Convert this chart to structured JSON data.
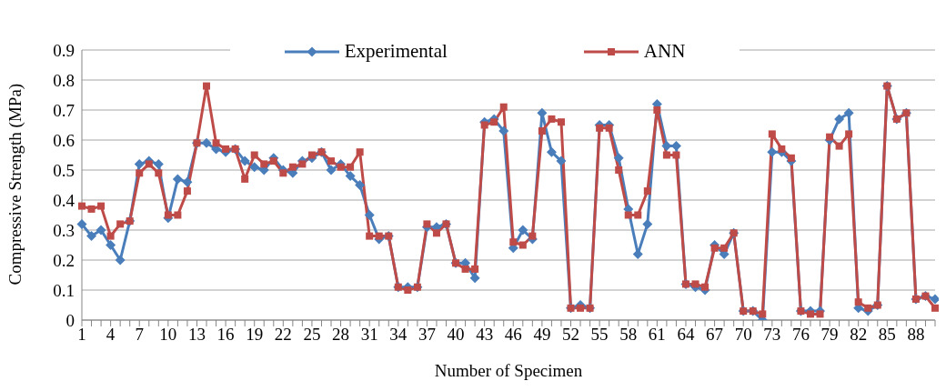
{
  "chart_data": {
    "type": "line",
    "xlabel": "Number of Specimen",
    "ylabel": "Compressive Strength (MPa)",
    "categories": [
      "1",
      null,
      null,
      "4",
      null,
      null,
      "7",
      null,
      null,
      "10",
      null,
      null,
      "13",
      null,
      null,
      "16",
      null,
      null,
      "19",
      null,
      null,
      "22",
      null,
      null,
      "25",
      null,
      null,
      "28",
      null,
      null,
      "31",
      null,
      null,
      "34",
      null,
      null,
      "37",
      null,
      null,
      "40",
      null,
      null,
      "43",
      null,
      null,
      "46",
      null,
      null,
      "49",
      null,
      null,
      "52",
      null,
      null,
      "55",
      null,
      null,
      "58",
      null,
      null,
      "61",
      null,
      null,
      "64",
      null,
      null,
      "67",
      null,
      null,
      "70",
      null,
      null,
      "73",
      null,
      null,
      "76",
      null,
      null,
      "79",
      null,
      null,
      "82",
      null,
      null,
      "85",
      null,
      null,
      "88",
      null,
      null
    ],
    "series": [
      {
        "name": "Experimental",
        "color": "#4a7ebb",
        "marker": "diamond",
        "values": [
          0.32,
          0.28,
          0.3,
          0.25,
          0.2,
          0.33,
          0.52,
          0.53,
          0.52,
          0.34,
          0.47,
          0.46,
          0.59,
          0.59,
          0.57,
          0.56,
          0.57,
          0.53,
          0.51,
          0.5,
          0.54,
          0.5,
          0.49,
          0.53,
          0.54,
          0.56,
          0.5,
          0.52,
          0.48,
          0.45,
          0.35,
          0.27,
          0.28,
          0.11,
          0.11,
          0.11,
          0.31,
          0.31,
          0.32,
          0.19,
          0.19,
          0.14,
          0.66,
          0.67,
          0.63,
          0.24,
          0.3,
          0.27,
          0.69,
          0.56,
          0.53,
          0.04,
          0.05,
          0.04,
          0.65,
          0.65,
          0.54,
          0.37,
          0.22,
          0.32,
          0.72,
          0.58,
          0.58,
          0.12,
          0.11,
          0.1,
          0.25,
          0.22,
          0.29,
          0.03,
          0.03,
          0.0,
          0.56,
          0.56,
          0.53,
          0.03,
          0.03,
          0.03,
          0.6,
          0.67,
          0.69,
          0.04,
          0.03,
          0.05,
          0.78,
          0.67,
          0.69,
          0.07,
          0.08,
          0.07
        ]
      },
      {
        "name": "ANN",
        "color": "#be4b48",
        "marker": "square",
        "values": [
          0.38,
          0.37,
          0.38,
          0.28,
          0.32,
          0.33,
          0.49,
          0.52,
          0.49,
          0.35,
          0.35,
          0.43,
          0.59,
          0.78,
          0.59,
          0.57,
          0.57,
          0.47,
          0.55,
          0.52,
          0.53,
          0.49,
          0.51,
          0.52,
          0.55,
          0.56,
          0.53,
          0.51,
          0.51,
          0.56,
          0.28,
          0.28,
          0.28,
          0.11,
          0.1,
          0.11,
          0.32,
          0.29,
          0.32,
          0.19,
          0.17,
          0.17,
          0.65,
          0.66,
          0.71,
          0.26,
          0.25,
          0.28,
          0.63,
          0.67,
          0.66,
          0.04,
          0.04,
          0.04,
          0.64,
          0.64,
          0.5,
          0.35,
          0.35,
          0.43,
          0.7,
          0.55,
          0.55,
          0.12,
          0.12,
          0.11,
          0.24,
          0.24,
          0.29,
          0.03,
          0.03,
          0.02,
          0.62,
          0.57,
          0.54,
          0.03,
          0.02,
          0.02,
          0.61,
          0.58,
          0.62,
          0.06,
          0.04,
          0.05,
          0.78,
          0.67,
          0.69,
          0.07,
          0.08,
          0.04
        ]
      }
    ],
    "ylim": [
      0,
      0.9
    ],
    "yticks": [
      0,
      0.1,
      0.2,
      0.3,
      0.4,
      0.5,
      0.6,
      0.7,
      0.8,
      0.9
    ],
    "grid": "y",
    "legend": "top",
    "line_style": "solid"
  }
}
